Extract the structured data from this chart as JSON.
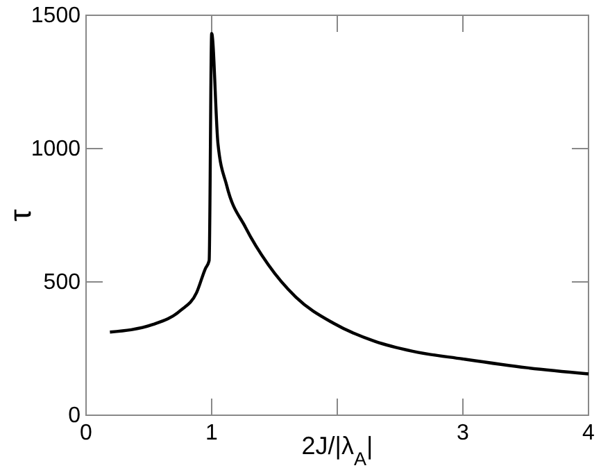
{
  "chart_data": {
    "type": "line",
    "xlabel": "2J/|λ$_{A}$|",
    "ylabel": "τ",
    "x": [
      0.19,
      0.53,
      0.75,
      0.88,
      0.95,
      0.98,
      1.0,
      1.05,
      1.12,
      1.27,
      1.45,
      1.67,
      1.97,
      2.3,
      2.6,
      3.0,
      3.51,
      4.0
    ],
    "series": [
      {
        "color": "#000000",
        "values": [
          312,
          340,
          392,
          460,
          550,
          580,
          1432,
          1019,
          861,
          704,
          565,
          443,
          345,
          277,
          240,
          211,
          178,
          155
        ]
      }
    ],
    "xlim": [
      0,
      4
    ],
    "xticks": [
      0,
      1,
      {
        "value": 2,
        "label": null
      },
      3,
      4
    ],
    "ylim": [
      0,
      1500
    ],
    "yticks": [
      0,
      500,
      1000,
      1500
    ],
    "grid": false,
    "marker": "none",
    "line_style": "solid"
  }
}
